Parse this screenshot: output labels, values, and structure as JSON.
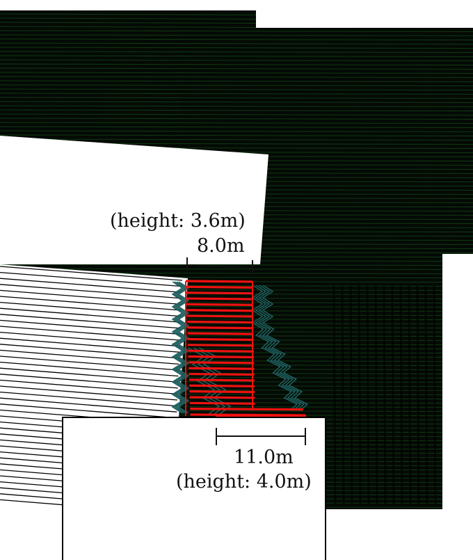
{
  "colors": {
    "background": "#ffffff",
    "dark_fill": "#050a05",
    "dark_hatch": "#0d3a12",
    "deck_lines": "#000000",
    "ramp_red": "#ee1111",
    "ramp_teal": "#1e5e5e",
    "dimension": "#111111"
  },
  "labels": {
    "top_height": "(height: 3.6m)",
    "top_width": "8.0m",
    "bottom_width": "11.0m",
    "bottom_height": "(height: 4.0m)"
  }
}
